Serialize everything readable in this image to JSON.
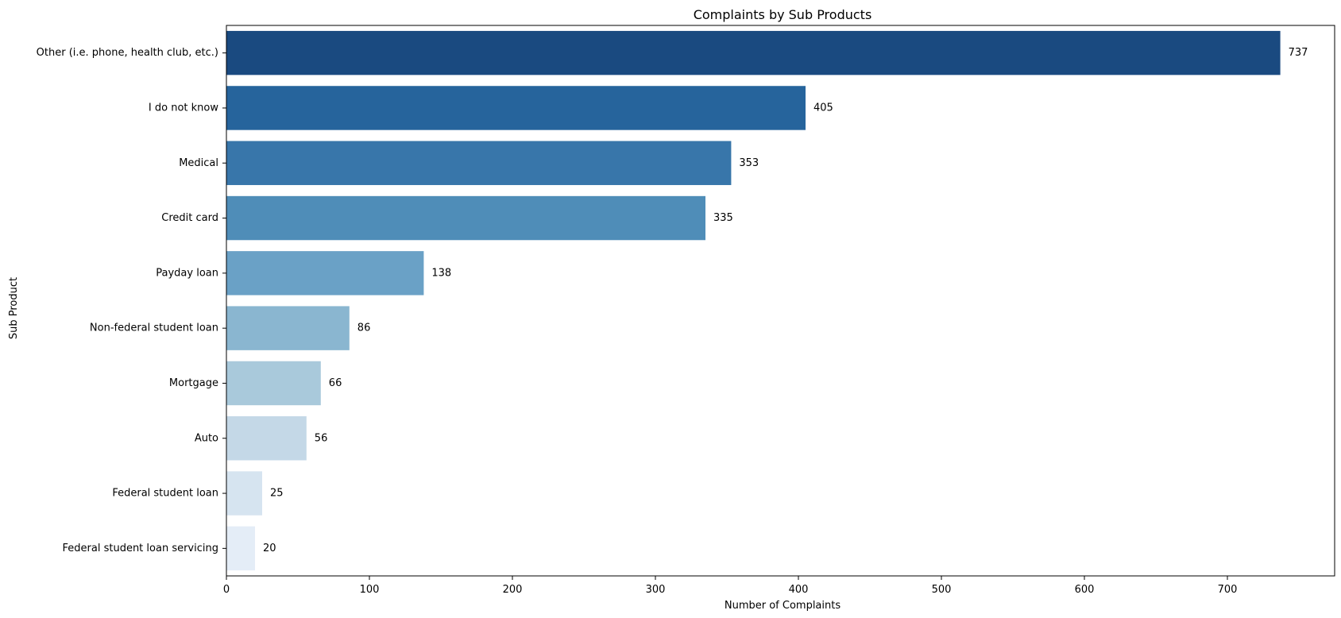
{
  "chart_data": {
    "type": "bar",
    "orientation": "horizontal",
    "title": "Complaints by Sub Products",
    "xlabel": "Number of Complaints",
    "ylabel": "Sub Product",
    "xlim": [
      0,
      775
    ],
    "xticks": [
      0,
      100,
      200,
      300,
      400,
      500,
      600,
      700
    ],
    "grid": false,
    "categories": [
      "Other (i.e. phone, health club, etc.)",
      "I do not know",
      "Medical",
      "Credit card",
      "Payday loan",
      "Non-federal student loan",
      "Mortgage",
      "Auto",
      "Federal student loan",
      "Federal student loan servicing"
    ],
    "values": [
      737,
      405,
      353,
      335,
      138,
      86,
      66,
      56,
      25,
      20
    ],
    "value_labels": [
      "737",
      "405",
      "353",
      "335",
      "138",
      "86",
      "66",
      "56",
      "25",
      "20"
    ],
    "colors": [
      "#1a4a80",
      "#26649c",
      "#3876aa",
      "#4f8db8",
      "#6aa1c6",
      "#8ab6d0",
      "#a9c9db",
      "#c4d8e7",
      "#d6e4f0",
      "#e4edf7"
    ]
  }
}
